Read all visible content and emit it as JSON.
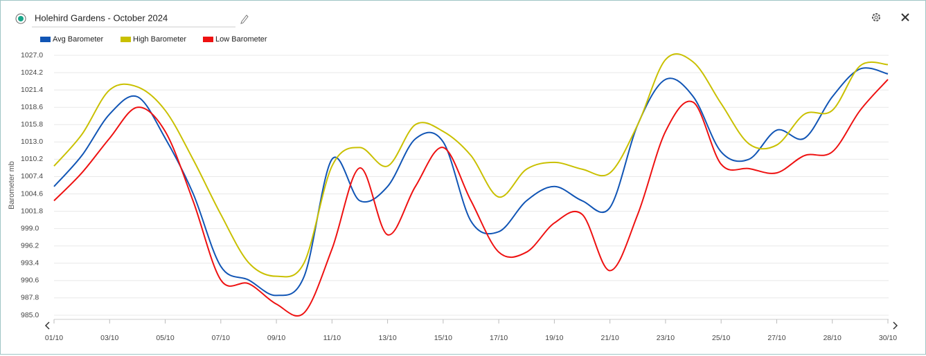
{
  "header": {
    "title": "Holehird Gardens - October 2024"
  },
  "chart_data": {
    "type": "line",
    "legend": "top-left",
    "grid": true,
    "y_label": "Barometer mb",
    "categories": [
      "01/10",
      null,
      "03/10",
      null,
      "05/10",
      null,
      "07/10",
      null,
      "09/10",
      null,
      "11/10",
      null,
      "13/10",
      null,
      "15/10",
      null,
      "17/10",
      null,
      "19/10",
      null,
      "21/10",
      null,
      "23/10",
      null,
      "25/10",
      null,
      "27/10",
      null,
      "28/10",
      null,
      "30/10"
    ],
    "series": [
      {
        "name": "Avg Barometer",
        "color": "#1155b5",
        "values": [
          1005.8,
          1010.8,
          1017.5,
          1020.3,
          1013.6,
          1004.7,
          992.9,
          990.7,
          988.2,
          991.3,
          1010.2,
          1003.5,
          1005.8,
          1013.5,
          1013.0,
          1000.2,
          998.5,
          1003.5,
          1005.8,
          1003.5,
          1002.4,
          1015.8,
          1023.1,
          1020.3,
          1011.4,
          1010.2,
          1014.9,
          1013.6,
          1020.3,
          1024.8,
          1024.0
        ]
      },
      {
        "name": "High Barometer",
        "color": "#c9c000",
        "values": [
          1009.1,
          1014.2,
          1021.4,
          1021.9,
          1018.1,
          1010.2,
          1001.3,
          993.5,
          991.3,
          993.5,
          1009.1,
          1012.1,
          1009.1,
          1015.8,
          1014.7,
          1010.8,
          1004.1,
          1008.6,
          1009.7,
          1008.6,
          1008.0,
          1015.8,
          1026.3,
          1025.9,
          1019.2,
          1012.7,
          1012.5,
          1017.5,
          1018.1,
          1025.3,
          1025.5
        ]
      },
      {
        "name": "Low Barometer",
        "color": "#ee1111",
        "values": [
          1003.5,
          1008.0,
          1013.6,
          1018.6,
          1014.7,
          1003.5,
          990.7,
          990.1,
          986.8,
          985.4,
          995.7,
          1008.8,
          998.0,
          1005.8,
          1012.1,
          1003.5,
          995.2,
          995.2,
          999.9,
          1001.3,
          992.2,
          1001.3,
          1014.7,
          1019.4,
          1009.4,
          1008.7,
          1008.0,
          1010.8,
          1011.4,
          1018.1,
          1023.1
        ]
      }
    ],
    "ylim": [
      985,
      1027
    ],
    "yticks": [
      {
        "value": 985,
        "label": "985.0"
      },
      987.8,
      990.6,
      993.4,
      996.2,
      {
        "value": 999,
        "label": "999.0"
      },
      1001.8,
      1004.6,
      1007.4,
      1010.2,
      {
        "value": 1013,
        "label": "1013.0"
      },
      1015.8,
      1018.6,
      1021.4,
      1024.2,
      {
        "value": 1027,
        "label": "1027.0"
      }
    ]
  }
}
